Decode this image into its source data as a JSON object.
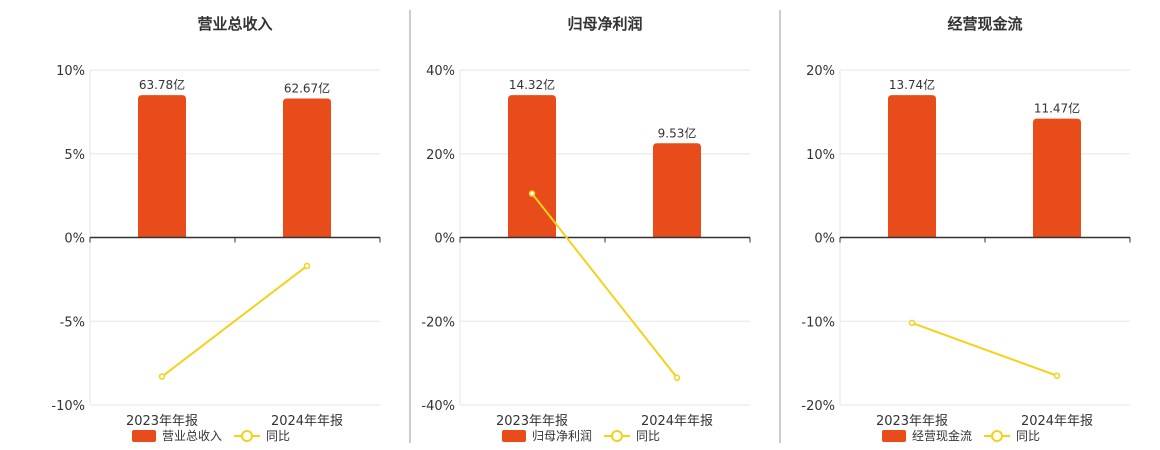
{
  "colors": {
    "bar": "#E84C1B",
    "line": "#F2D21B",
    "grid": "#e6e6e6",
    "axis": "#333333",
    "divider": "#999999"
  },
  "legend": {
    "line_label": "同比"
  },
  "chart_data": [
    {
      "type": "bar",
      "title": "营业总收入",
      "categories": [
        "2023年年报",
        "2024年年报"
      ],
      "yticks": [
        "10%",
        "5%",
        "0%",
        "-5%",
        "-10%"
      ],
      "ylim": [
        -10,
        10
      ],
      "series": [
        {
          "name": "营业总收入",
          "type": "bar",
          "values": [
            8.5,
            8.3
          ],
          "labels": [
            "63.78亿",
            "62.67亿"
          ]
        },
        {
          "name": "同比",
          "type": "line",
          "values": [
            -8.3,
            -1.7
          ]
        }
      ]
    },
    {
      "type": "bar",
      "title": "归母净利润",
      "categories": [
        "2023年年报",
        "2024年年报"
      ],
      "yticks": [
        "40%",
        "20%",
        "0%",
        "-20%",
        "-40%"
      ],
      "ylim": [
        -40,
        40
      ],
      "series": [
        {
          "name": "归母净利润",
          "type": "bar",
          "values": [
            34,
            22.5
          ],
          "labels": [
            "14.32亿",
            "9.53亿"
          ]
        },
        {
          "name": "同比",
          "type": "line",
          "values": [
            10.5,
            -33.5
          ]
        }
      ]
    },
    {
      "type": "bar",
      "title": "经营现金流",
      "categories": [
        "2023年年报",
        "2024年年报"
      ],
      "yticks": [
        "20%",
        "10%",
        "0%",
        "-10%",
        "-20%"
      ],
      "ylim": [
        -20,
        20
      ],
      "series": [
        {
          "name": "经营现金流",
          "type": "bar",
          "values": [
            17,
            14.2
          ],
          "labels": [
            "13.74亿",
            "11.47亿"
          ]
        },
        {
          "name": "同比",
          "type": "line",
          "values": [
            -10.2,
            -16.5
          ]
        }
      ]
    }
  ]
}
